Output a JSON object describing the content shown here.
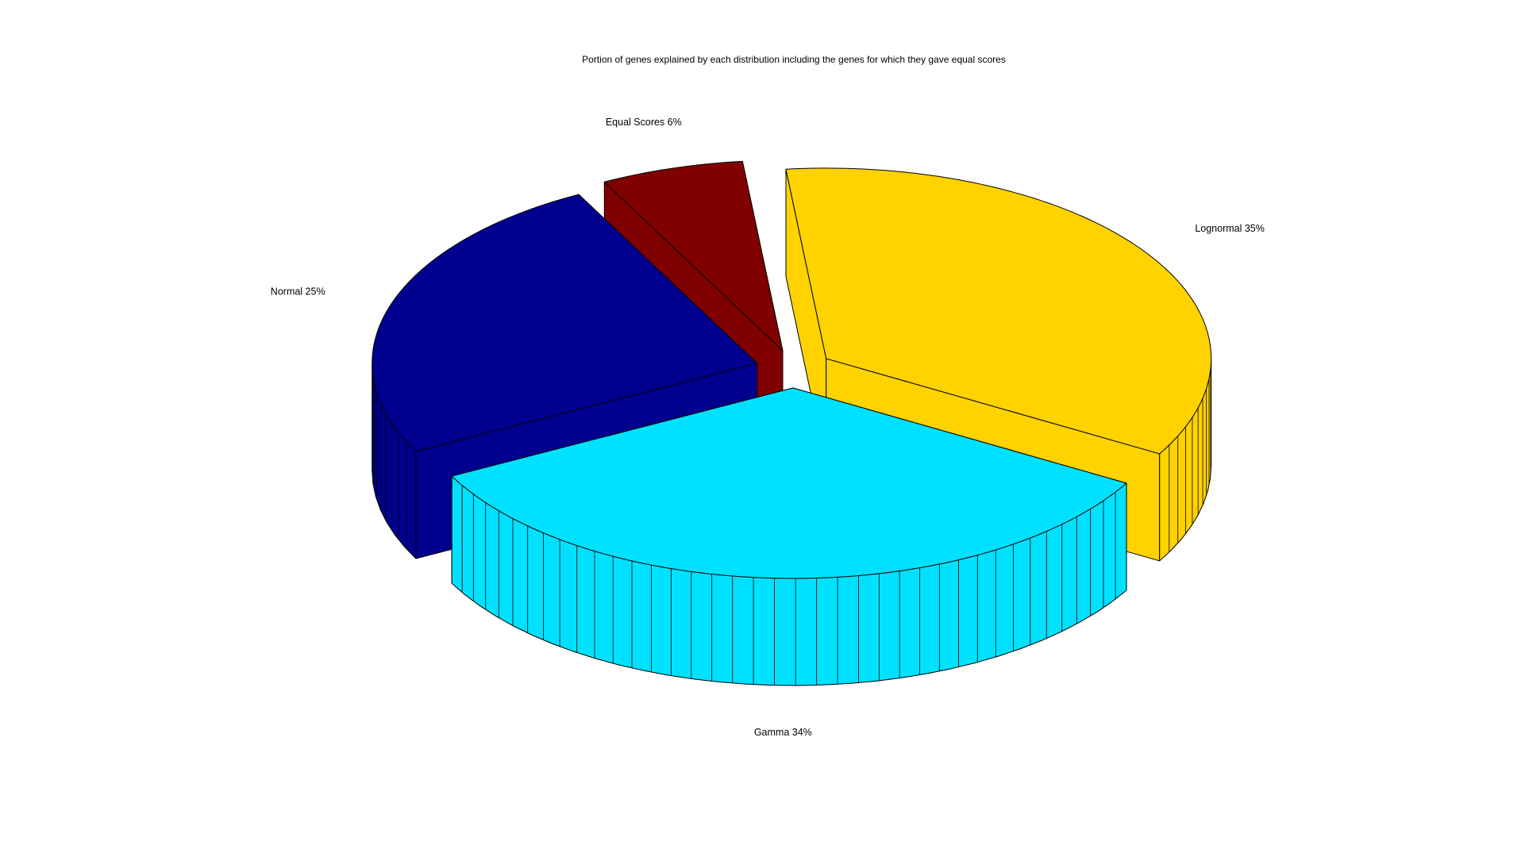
{
  "chart_data": {
    "type": "pie",
    "style": "3d-exploded",
    "title": "Portion of genes explained by each distribution including the genes for which they gave equal scores",
    "slices": [
      {
        "name": "Lognormal",
        "value": 35,
        "label": "Lognormal 35%",
        "color": "#ffd200"
      },
      {
        "name": "Gamma",
        "value": 34,
        "label": "Gamma 34%",
        "color": "#00e1ff"
      },
      {
        "name": "Normal",
        "value": 25,
        "label": "Normal 25%",
        "color": "#00008f"
      },
      {
        "name": "Equal Scores",
        "value": 6,
        "label": "Equal Scores 6%",
        "color": "#800000"
      }
    ],
    "legend": "none",
    "grid": false
  }
}
